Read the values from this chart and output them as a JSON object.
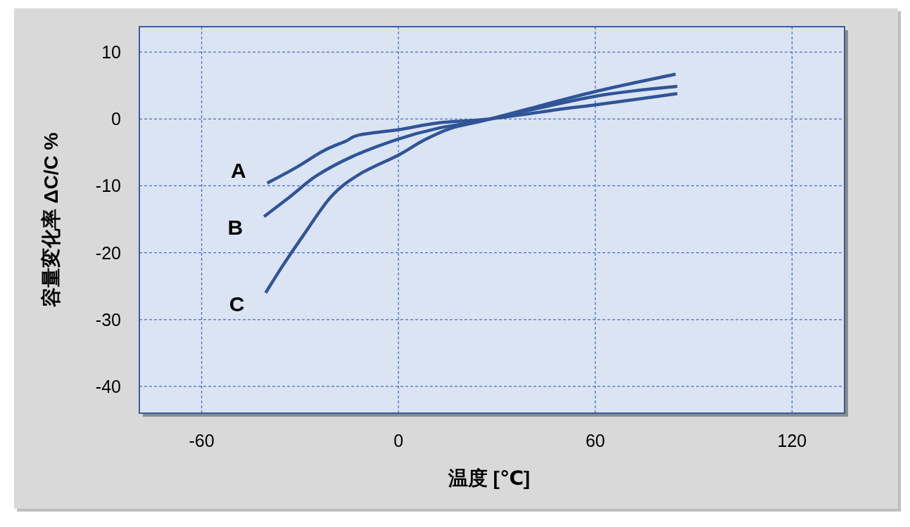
{
  "chart_data": {
    "type": "line",
    "xlabel": "温度 [℃]",
    "ylabel": "容量変化率 ΔC/C %",
    "xlim": [
      -79,
      136
    ],
    "ylim": [
      -44,
      13.8
    ],
    "xticks": [
      -60,
      0,
      60,
      120
    ],
    "yticks": [
      -40,
      -30,
      -20,
      -10,
      0,
      10
    ],
    "grid": true,
    "legend": false,
    "marker": "none",
    "line_style": "solid",
    "series": [
      {
        "name": "A",
        "color": "#2f5597",
        "x": [
          -40,
          -31,
          -23,
          -16,
          -12,
          0,
          12,
          28,
          50,
          60,
          85
        ],
        "values": [
          -9.6,
          -7.2,
          -4.8,
          -3.3,
          -2.4,
          -1.6,
          -0.6,
          0,
          1.5,
          2.1,
          3.8
        ]
      },
      {
        "name": "B",
        "color": "#2f5597",
        "x": [
          -41,
          -33,
          -25,
          -14,
          0,
          12,
          28,
          60,
          85
        ],
        "values": [
          -14.6,
          -11.6,
          -8.5,
          -5.6,
          -3.0,
          -1.4,
          0,
          3.4,
          4.9
        ]
      },
      {
        "name": "C",
        "color": "#2f5597",
        "x": [
          -40.5,
          -35.5,
          -29,
          -20.5,
          -12,
          0,
          7.3,
          16,
          28,
          60,
          84.5
        ],
        "values": [
          -26,
          -22.1,
          -17.4,
          -11.6,
          -8.3,
          -5.4,
          -3.3,
          -1.4,
          0,
          4.1,
          6.7
        ]
      }
    ]
  }
}
